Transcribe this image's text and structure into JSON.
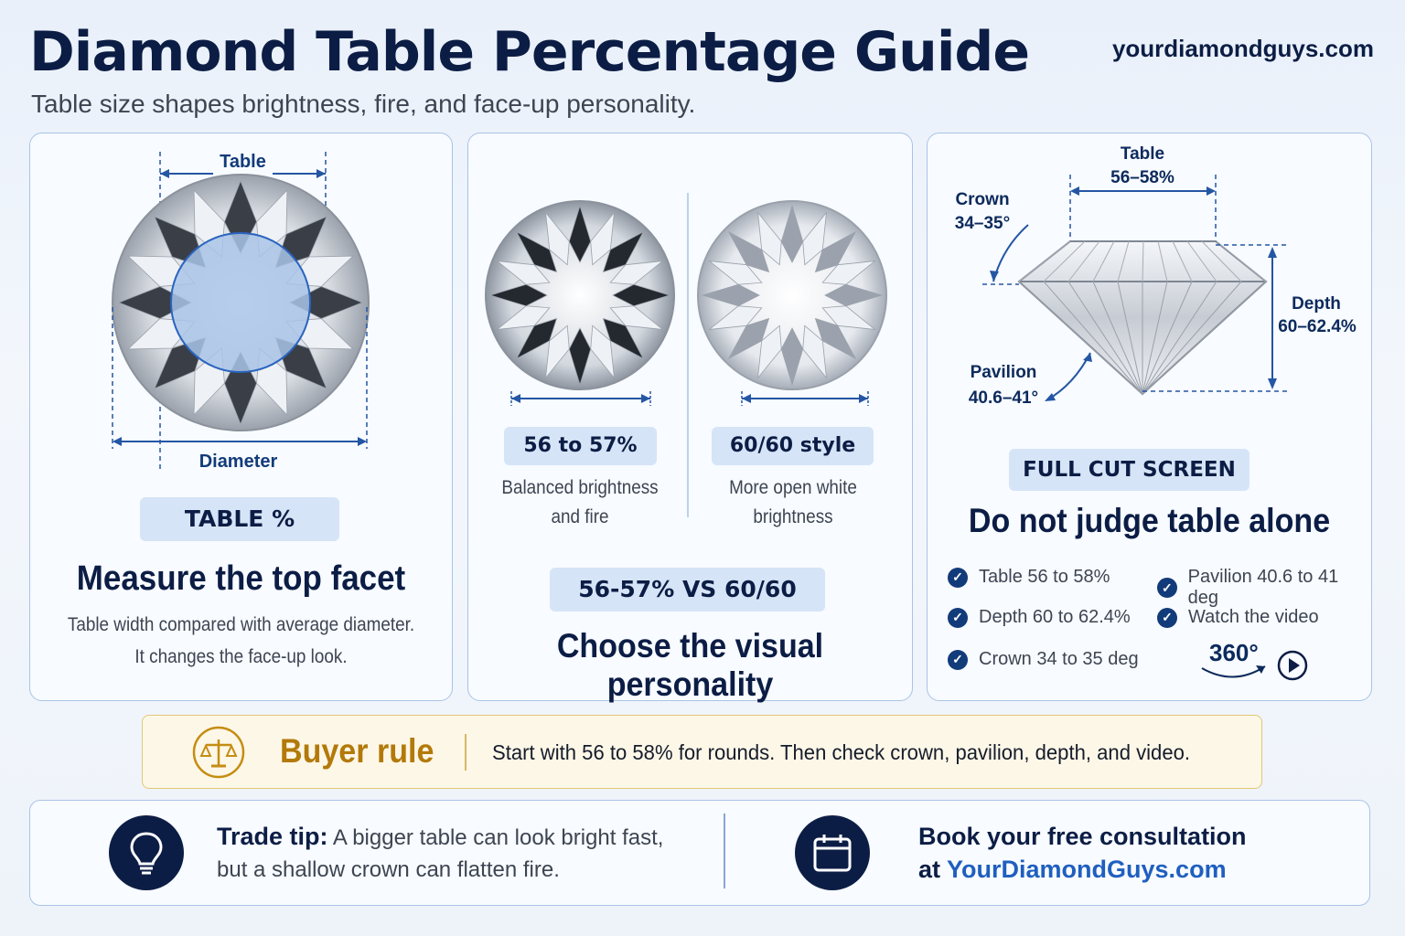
{
  "header": {
    "title": "Diamond Table Percentage Guide",
    "site": "yourdiamondguys.com",
    "subtitle": "Table size shapes brightness, fire, and face-up personality."
  },
  "card_measure": {
    "table_label": "Table",
    "diameter_label": "Diameter",
    "pill": "TABLE %",
    "heading": "Measure the top facet",
    "line1": "Table width compared with average diameter.",
    "line2": "It changes the face-up look."
  },
  "card_compare": {
    "left_pill": "56 to 57%",
    "left_line1": "Balanced brightness",
    "left_line2": "and fire",
    "right_pill": "60/60 style",
    "right_line1": "More open white",
    "right_line2": "brightness",
    "vs_pill": "56-57% VS 60/60",
    "heading": "Choose the visual personality"
  },
  "card_cut": {
    "table_label": "Table",
    "table_value": "56–58%",
    "crown_label": "Crown",
    "crown_value": "34–35°",
    "depth_label": "Depth",
    "depth_value": "60–62.4%",
    "pavilion_label": "Pavilion",
    "pavilion_value": "40.6–41°",
    "pill": "FULL CUT SCREEN",
    "heading": "Do not judge table alone",
    "checks": [
      "Table 56 to 58%",
      "Depth 60 to 62.4%",
      "Crown 34 to 35 deg",
      "Pavilion 40.6 to 41 deg",
      "Watch the video"
    ],
    "video_badge": "360°"
  },
  "buyer_rule": {
    "title": "Buyer rule",
    "text": "Start with 56 to 58% for rounds. Then check crown, pavilion, depth, and video."
  },
  "footer": {
    "tip_label": "Trade tip:",
    "tip_line1": "A bigger table can look bright fast,",
    "tip_line2": "but a shallow crown can flatten fire.",
    "book_line1": "Book your free consultation",
    "book_prefix": "at",
    "book_link": "YourDiamondGuys.com"
  },
  "colors": {
    "navy": "#0c1d45",
    "accent_blue": "#1f5fbf",
    "pill_bg": "#d6e4f7",
    "gold": "#b8860b"
  }
}
